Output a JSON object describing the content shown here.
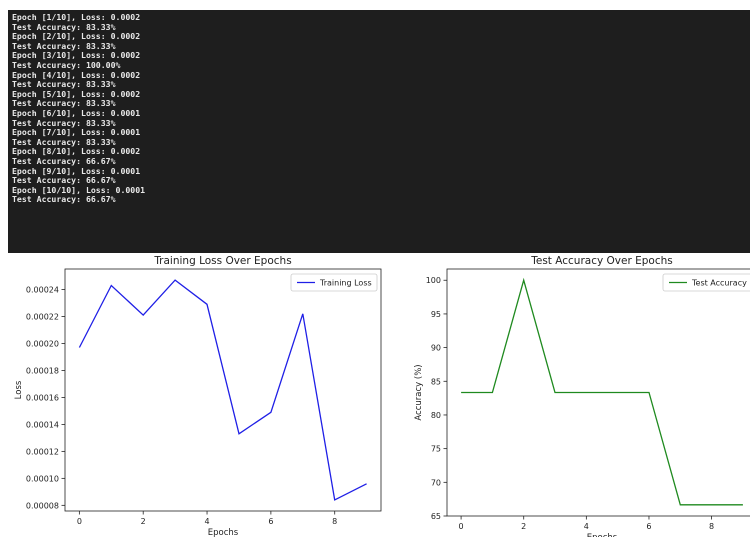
{
  "console": {
    "lines": [
      "Epoch [1/10], Loss: 0.0002",
      "Test Accuracy: 83.33%",
      "Epoch [2/10], Loss: 0.0002",
      "Test Accuracy: 83.33%",
      "Epoch [3/10], Loss: 0.0002",
      "Test Accuracy: 100.00%",
      "Epoch [4/10], Loss: 0.0002",
      "Test Accuracy: 83.33%",
      "Epoch [5/10], Loss: 0.0002",
      "Test Accuracy: 83.33%",
      "Epoch [6/10], Loss: 0.0001",
      "Test Accuracy: 83.33%",
      "Epoch [7/10], Loss: 0.0001",
      "Test Accuracy: 83.33%",
      "Epoch [8/10], Loss: 0.0002",
      "Test Accuracy: 66.67%",
      "Epoch [9/10], Loss: 0.0001",
      "Test Accuracy: 66.67%",
      "Epoch [10/10], Loss: 0.0001",
      "Test Accuracy: 66.67%"
    ]
  },
  "chart_data": [
    {
      "type": "line",
      "title": "Training Loss Over Epochs",
      "xlabel": "Epochs",
      "ylabel": "Loss",
      "x": [
        0,
        1,
        2,
        3,
        4,
        5,
        6,
        7,
        8,
        9
      ],
      "series": [
        {
          "name": "Training Loss",
          "color": "#1f1fe6",
          "values": [
            0.000197,
            0.000243,
            0.000221,
            0.000247,
            0.000229,
            0.000133,
            0.000149,
            0.000222,
            8.4e-05,
            9.6e-05
          ]
        }
      ],
      "xticks": [
        "0",
        "2",
        "4",
        "6",
        "8"
      ],
      "yticks": [
        "0.00008",
        "0.00010",
        "0.00012",
        "0.00014",
        "0.00016",
        "0.00018",
        "0.00020",
        "0.00022",
        "0.00024"
      ],
      "xlim": [
        -0.45,
        9.45
      ],
      "ylim": [
        7.58e-05,
        0.0002552
      ],
      "legend": "top-right",
      "grid": false
    },
    {
      "type": "line",
      "title": "Test Accuracy Over Epochs",
      "xlabel": "Epochs",
      "ylabel": "Accuracy (%)",
      "x": [
        0,
        1,
        2,
        3,
        4,
        5,
        6,
        7,
        8,
        9
      ],
      "series": [
        {
          "name": "Test Accuracy",
          "color": "#1f8a1f",
          "values": [
            83.33,
            83.33,
            100.0,
            83.33,
            83.33,
            83.33,
            83.33,
            66.67,
            66.67,
            66.67
          ]
        }
      ],
      "xticks": [
        "0",
        "2",
        "4",
        "6",
        "8"
      ],
      "yticks": [
        "65",
        "70",
        "75",
        "80",
        "85",
        "90",
        "95",
        "100"
      ],
      "xlim": [
        -0.45,
        9.45
      ],
      "ylim": [
        65.0,
        101.67
      ],
      "legend": "top-right",
      "grid": false
    }
  ]
}
